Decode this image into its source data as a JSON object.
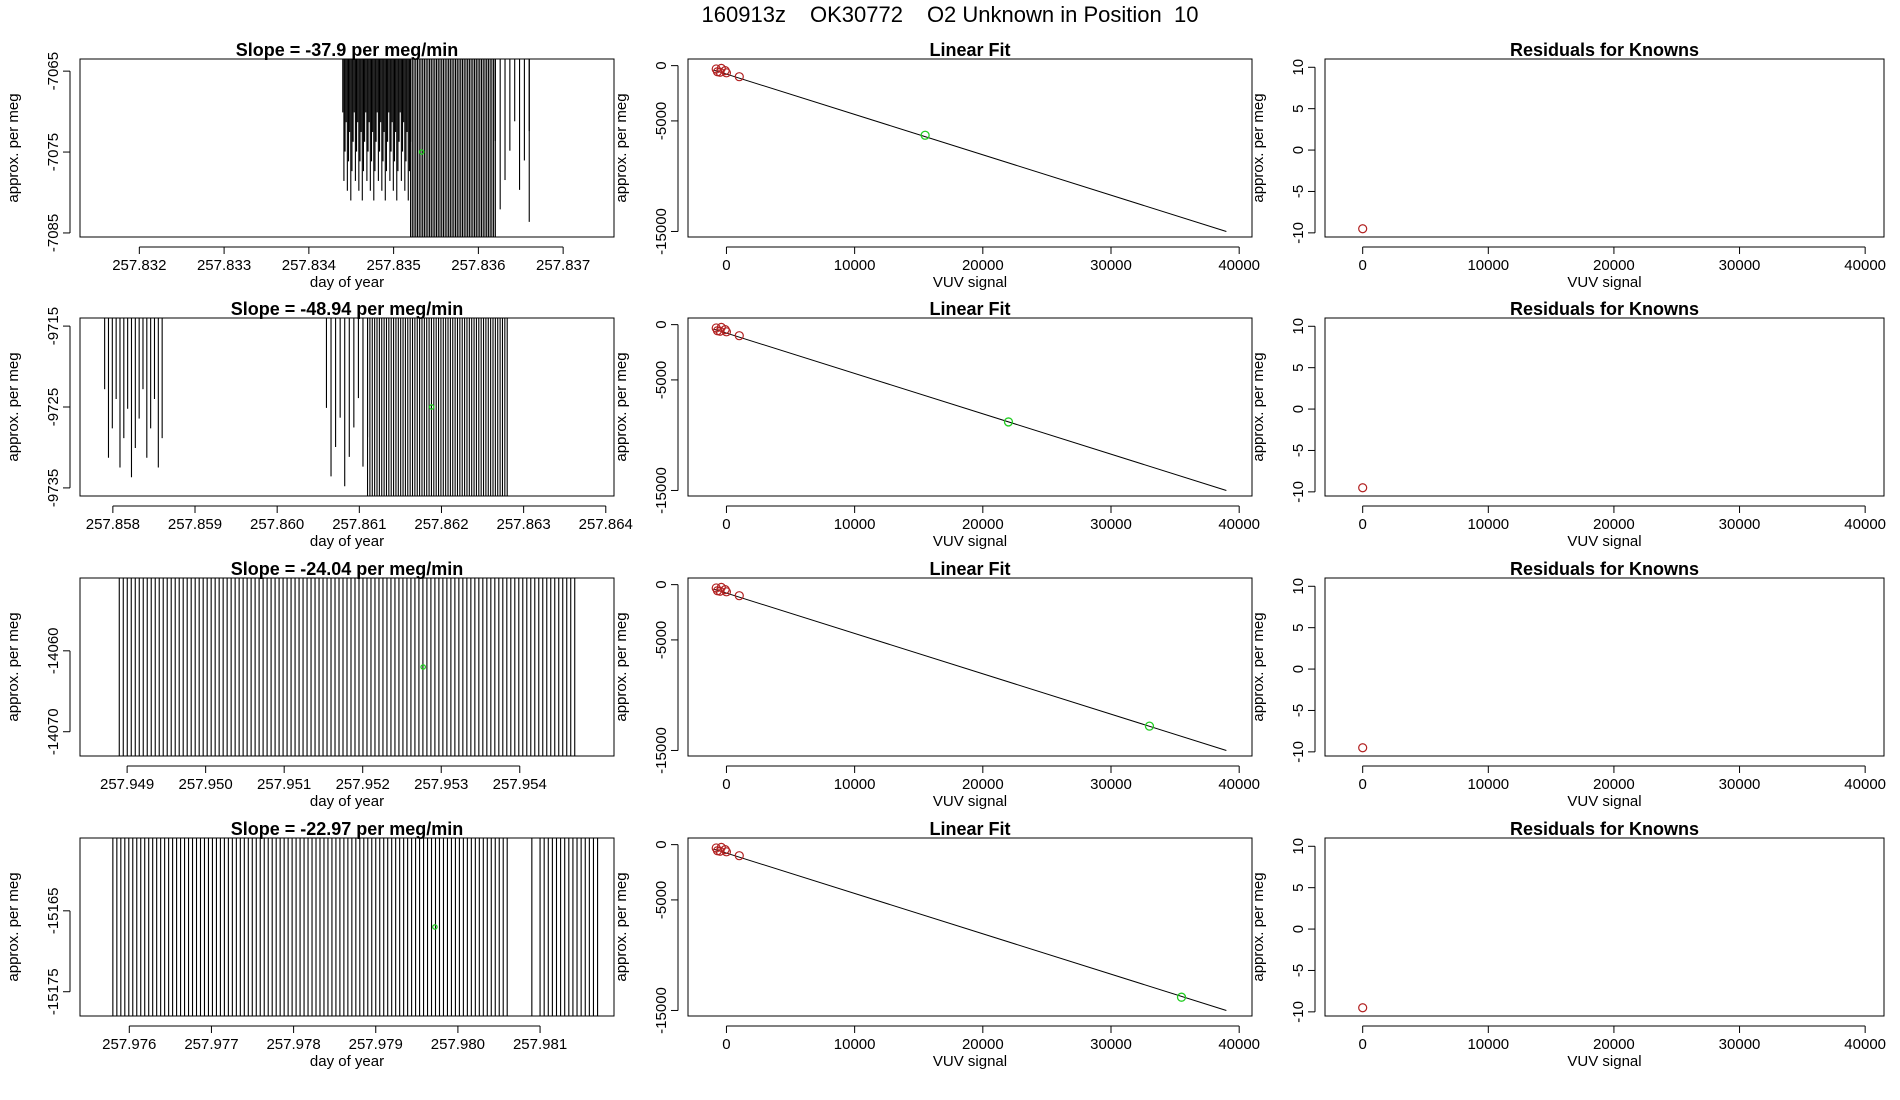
{
  "header": {
    "date": "160913z",
    "tank": "OK30772",
    "description": "O2 Unknown in Position  10"
  },
  "colors": {
    "trace": "#000000",
    "known": "#b22222",
    "unknown": "#22cc22",
    "fitline": "#000000"
  },
  "chart_data": [
    {
      "type": "line",
      "row": 0,
      "panel": "timeseries",
      "title": "Slope =  -37.9  per meg/min",
      "xlabel": "day of year",
      "ylabel": "approx. per meg",
      "xlim": [
        257.8313,
        257.8376
      ],
      "ylim": [
        -7085.5,
        -7063.5
      ],
      "xticks": [
        "257.832",
        "257.833",
        "257.834",
        "257.835",
        "257.836",
        "257.837"
      ],
      "xtick_values": [
        257.832,
        257.833,
        257.834,
        257.835,
        257.836,
        257.837
      ],
      "yticks": [
        "-7065",
        "-7075",
        "-7085"
      ],
      "ytick_values": [
        -7065,
        -7075,
        -7085
      ],
      "mean_marker": [
        257.83533,
        -7075
      ],
      "segments": [
        [
          257.8344,
          257.8352,
          0.3,
          60
        ],
        [
          257.8352,
          257.8362,
          0.0,
          50
        ],
        [
          257.8362,
          257.8366,
          0.35,
          8
        ],
        [
          257.8366,
          257.8368,
          0.75,
          1
        ]
      ]
    },
    {
      "type": "scatter",
      "row": 0,
      "panel": "fit",
      "title": "Linear Fit",
      "xlabel": "VUV signal",
      "ylabel": "approx. per meg",
      "xlim": [
        -3000,
        41000
      ],
      "ylim": [
        -15500,
        600
      ],
      "xticks": [
        "0",
        "10000",
        "20000",
        "30000",
        "40000"
      ],
      "xtick_values": [
        0,
        10000,
        20000,
        30000,
        40000
      ],
      "yticks": [
        "0",
        "-5000",
        "-15000"
      ],
      "ytick_values": [
        0,
        -5000,
        -15000
      ],
      "line": [
        [
          -1000,
          -400
        ],
        [
          39000,
          -15000
        ]
      ],
      "knowns": [
        [
          -800,
          -300
        ],
        [
          -400,
          -250
        ],
        [
          -700,
          -550
        ],
        [
          -500,
          -600
        ],
        [
          0,
          -650
        ],
        [
          -100,
          -450
        ],
        [
          1000,
          -1000
        ]
      ],
      "unknown": [
        15500,
        -6300
      ]
    },
    {
      "type": "scatter",
      "row": 0,
      "panel": "residuals",
      "title": "Residuals for Knowns",
      "xlabel": "VUV signal",
      "ylabel": "approx. per meg",
      "xlim": [
        -3000,
        41500
      ],
      "ylim": [
        -10.5,
        11
      ],
      "xticks": [
        "0",
        "10000",
        "20000",
        "30000",
        "40000"
      ],
      "xtick_values": [
        0,
        10000,
        20000,
        30000,
        40000
      ],
      "yticks": [
        "10",
        "5",
        "0",
        "-5",
        "-10"
      ],
      "ytick_values": [
        10,
        5,
        0,
        -5,
        -10
      ],
      "points": [
        [
          0,
          -9.5
        ]
      ]
    },
    {
      "type": "line",
      "row": 1,
      "panel": "timeseries",
      "title": "Slope =  -48.94  per meg/min",
      "xlabel": "day of year",
      "ylabel": "approx. per meg",
      "xlim": [
        257.8576,
        257.8641
      ],
      "ylim": [
        -9736,
        -9714
      ],
      "xticks": [
        "257.858",
        "257.859",
        "257.860",
        "257.861",
        "257.862",
        "257.863",
        "257.864"
      ],
      "xtick_values": [
        257.858,
        257.859,
        257.86,
        257.861,
        257.862,
        257.863,
        257.864
      ],
      "yticks": [
        "-9715",
        "-9725",
        "-9735"
      ],
      "ytick_values": [
        -9715,
        -9725,
        -9735
      ],
      "mean_marker": [
        257.86188,
        -9725
      ],
      "segments": [
        [
          257.8579,
          257.8586,
          0.4,
          16
        ],
        [
          257.8606,
          257.8611,
          0.45,
          10
        ],
        [
          257.8611,
          257.8628,
          0.0,
          60
        ]
      ]
    },
    {
      "type": "scatter",
      "row": 1,
      "panel": "fit",
      "title": "Linear Fit",
      "xlabel": "VUV signal",
      "ylabel": "approx. per meg",
      "xlim": [
        -3000,
        41000
      ],
      "ylim": [
        -15500,
        600
      ],
      "xticks": [
        "0",
        "10000",
        "20000",
        "30000",
        "40000"
      ],
      "xtick_values": [
        0,
        10000,
        20000,
        30000,
        40000
      ],
      "yticks": [
        "0",
        "-5000",
        "-15000"
      ],
      "ytick_values": [
        0,
        -5000,
        -15000
      ],
      "line": [
        [
          -1000,
          -400
        ],
        [
          39000,
          -15000
        ]
      ],
      "knowns": [
        [
          -800,
          -300
        ],
        [
          -400,
          -250
        ],
        [
          -700,
          -550
        ],
        [
          -500,
          -600
        ],
        [
          0,
          -650
        ],
        [
          -100,
          -450
        ],
        [
          1000,
          -1000
        ]
      ],
      "unknown": [
        22000,
        -8800
      ]
    },
    {
      "type": "scatter",
      "row": 1,
      "panel": "residuals",
      "title": "Residuals for Knowns",
      "xlabel": "VUV signal",
      "ylabel": "approx. per meg",
      "xlim": [
        -3000,
        41500
      ],
      "ylim": [
        -10.5,
        11
      ],
      "xticks": [
        "0",
        "10000",
        "20000",
        "30000",
        "40000"
      ],
      "xtick_values": [
        0,
        10000,
        20000,
        30000,
        40000
      ],
      "yticks": [
        "10",
        "5",
        "0",
        "-5",
        "-10"
      ],
      "ytick_values": [
        10,
        5,
        0,
        -5,
        -10
      ],
      "points": [
        [
          0,
          -9.5
        ]
      ]
    },
    {
      "type": "line",
      "row": 2,
      "panel": "timeseries",
      "title": "Slope =  -24.04  per meg/min",
      "xlabel": "day of year",
      "ylabel": "approx. per meg",
      "xlim": [
        257.9484,
        257.9552
      ],
      "ylim": [
        -14073,
        -14051
      ],
      "xticks": [
        "257.949",
        "257.950",
        "257.951",
        "257.952",
        "257.953",
        "257.954"
      ],
      "xtick_values": [
        257.949,
        257.95,
        257.951,
        257.952,
        257.953,
        257.954
      ],
      "yticks": [
        "-14060",
        "-14070"
      ],
      "ytick_values": [
        -14060,
        -14070
      ],
      "mean_marker": [
        257.95277,
        -14062
      ],
      "segments": [
        [
          257.9489,
          257.9547,
          0.0,
          115
        ]
      ]
    },
    {
      "type": "scatter",
      "row": 2,
      "panel": "fit",
      "title": "Linear Fit",
      "xlabel": "VUV signal",
      "ylabel": "approx. per meg",
      "xlim": [
        -3000,
        41000
      ],
      "ylim": [
        -15500,
        600
      ],
      "xticks": [
        "0",
        "10000",
        "20000",
        "30000",
        "40000"
      ],
      "xtick_values": [
        0,
        10000,
        20000,
        30000,
        40000
      ],
      "yticks": [
        "0",
        "-5000",
        "-15000"
      ],
      "ytick_values": [
        0,
        -5000,
        -15000
      ],
      "line": [
        [
          -1000,
          -400
        ],
        [
          39000,
          -15000
        ]
      ],
      "knowns": [
        [
          -800,
          -300
        ],
        [
          -400,
          -250
        ],
        [
          -700,
          -550
        ],
        [
          -500,
          -600
        ],
        [
          0,
          -650
        ],
        [
          -100,
          -450
        ],
        [
          1000,
          -1000
        ]
      ],
      "unknown": [
        33000,
        -12800
      ]
    },
    {
      "type": "scatter",
      "row": 2,
      "panel": "residuals",
      "title": "Residuals for Knowns",
      "xlabel": "VUV signal",
      "ylabel": "approx. per meg",
      "xlim": [
        -3000,
        41500
      ],
      "ylim": [
        -10.5,
        11
      ],
      "xticks": [
        "0",
        "10000",
        "20000",
        "30000",
        "40000"
      ],
      "xtick_values": [
        0,
        10000,
        20000,
        30000,
        40000
      ],
      "yticks": [
        "10",
        "5",
        "0",
        "-5",
        "-10"
      ],
      "ytick_values": [
        10,
        5,
        0,
        -5,
        -10
      ],
      "points": [
        [
          0,
          -9.5
        ]
      ]
    },
    {
      "type": "line",
      "row": 3,
      "panel": "timeseries",
      "title": "Slope =  -22.97  per meg/min",
      "xlabel": "day of year",
      "ylabel": "approx. per meg",
      "xlim": [
        257.9754,
        257.9819
      ],
      "ylim": [
        -15178,
        -15156
      ],
      "xticks": [
        "257.976",
        "257.977",
        "257.978",
        "257.979",
        "257.980",
        "257.981"
      ],
      "xtick_values": [
        257.976,
        257.977,
        257.978,
        257.979,
        257.98,
        257.981
      ],
      "yticks": [
        "-15165",
        "-15175"
      ],
      "ytick_values": [
        -15165,
        -15175
      ],
      "mean_marker": [
        257.97972,
        -15167
      ],
      "segments": [
        [
          257.9758,
          257.9806,
          0.0,
          100
        ],
        [
          257.9809,
          257.981,
          0.95,
          1
        ],
        [
          257.981,
          257.9817,
          0.0,
          15
        ]
      ]
    },
    {
      "type": "scatter",
      "row": 3,
      "panel": "fit",
      "title": "Linear Fit",
      "xlabel": "VUV signal",
      "ylabel": "approx. per meg",
      "xlim": [
        -3000,
        41000
      ],
      "ylim": [
        -15500,
        600
      ],
      "xticks": [
        "0",
        "10000",
        "20000",
        "30000",
        "40000"
      ],
      "xtick_values": [
        0,
        10000,
        20000,
        30000,
        40000
      ],
      "yticks": [
        "0",
        "-5000",
        "-15000"
      ],
      "ytick_values": [
        0,
        -5000,
        -15000
      ],
      "line": [
        [
          -1000,
          -400
        ],
        [
          39000,
          -15000
        ]
      ],
      "knowns": [
        [
          -800,
          -300
        ],
        [
          -400,
          -250
        ],
        [
          -700,
          -550
        ],
        [
          -500,
          -600
        ],
        [
          0,
          -650
        ],
        [
          -100,
          -450
        ],
        [
          1000,
          -1000
        ]
      ],
      "unknown": [
        35500,
        -13800
      ]
    },
    {
      "type": "scatter",
      "row": 3,
      "panel": "residuals",
      "title": "Residuals for Knowns",
      "xlabel": "VUV signal",
      "ylabel": "approx. per meg",
      "xlim": [
        -3000,
        41500
      ],
      "ylim": [
        -10.5,
        11
      ],
      "xticks": [
        "0",
        "10000",
        "20000",
        "30000",
        "40000"
      ],
      "xtick_values": [
        0,
        10000,
        20000,
        30000,
        40000
      ],
      "yticks": [
        "10",
        "5",
        "0",
        "-5",
        "-10"
      ],
      "ytick_values": [
        10,
        5,
        0,
        -5,
        -10
      ],
      "points": [
        [
          0,
          -9.5
        ]
      ]
    }
  ]
}
